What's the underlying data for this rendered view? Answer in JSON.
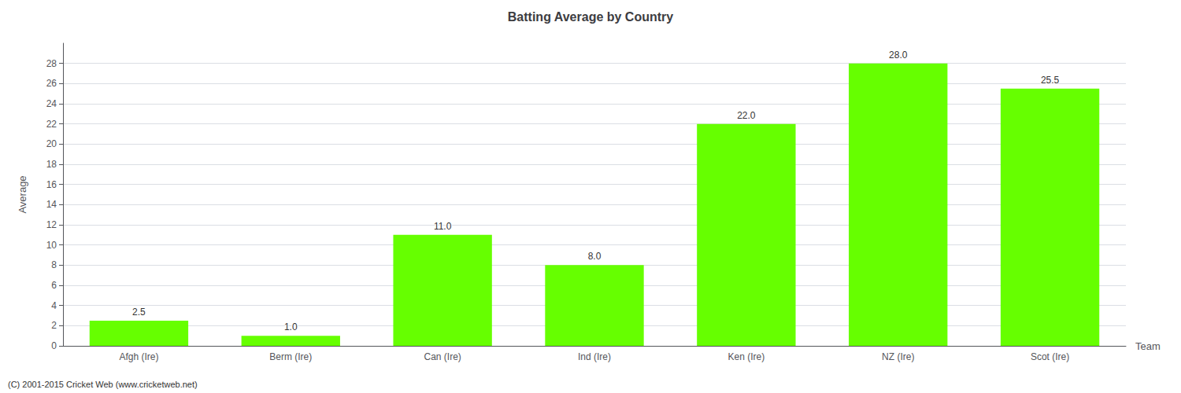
{
  "chart_data": {
    "type": "bar",
    "title": "Batting Average by Country",
    "categories": [
      "Afgh (Ire)",
      "Berm (Ire)",
      "Can (Ire)",
      "Ind (Ire)",
      "Ken (Ire)",
      "NZ (Ire)",
      "Scot (Ire)"
    ],
    "values": [
      2.5,
      1.0,
      11.0,
      8.0,
      22.0,
      28.0,
      25.5
    ],
    "value_labels": [
      "2.5",
      "1.0",
      "11.0",
      "8.0",
      "22.0",
      "28.0",
      "25.5"
    ],
    "data_labels": true,
    "color": "#66ff00",
    "xlabel": "Team",
    "ylabel": "Average",
    "ylim": [
      0,
      30
    ],
    "yticks": [
      0,
      2,
      4,
      6,
      8,
      10,
      12,
      14,
      16,
      18,
      20,
      22,
      24,
      26,
      28
    ],
    "grid": true,
    "annotations": [
      "(C) 2001-2015 Cricket Web (www.cricketweb.net)"
    ]
  }
}
